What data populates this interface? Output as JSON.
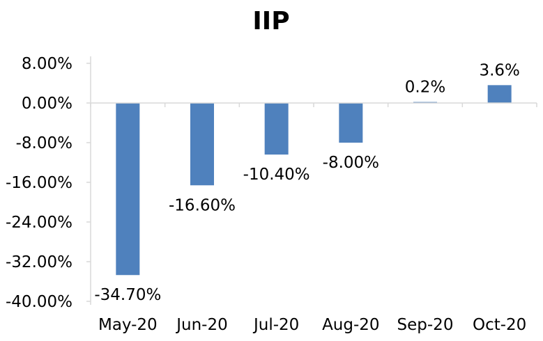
{
  "chart_data": {
    "type": "bar",
    "title": "IIP",
    "categories": [
      "May-20",
      "Jun-20",
      "Jul-20",
      "Aug-20",
      "Sep-20",
      "Oct-20"
    ],
    "series": [
      {
        "values": [
          -34.7,
          -16.6,
          -10.4,
          -8.0,
          0.2,
          3.6
        ],
        "labels": [
          "-34.70%",
          "-16.60%",
          "-10.40%",
          "-8.00%",
          "0.2%",
          "3.6%"
        ],
        "color": "#4f81bd"
      }
    ],
    "ylim": [
      -40,
      8
    ],
    "yticks": [
      {
        "value": 8,
        "label": "8.00%"
      },
      {
        "value": 0,
        "label": "0.00%"
      },
      {
        "value": -8,
        "label": "-8.00%"
      },
      {
        "value": -16,
        "label": "-16.00%"
      },
      {
        "value": -24,
        "label": "-24.00%"
      },
      {
        "value": -32,
        "label": "-32.00%"
      },
      {
        "value": -40,
        "label": "-40.00%"
      }
    ],
    "grid": false,
    "legend": "none",
    "xlabel": "",
    "ylabel": ""
  }
}
